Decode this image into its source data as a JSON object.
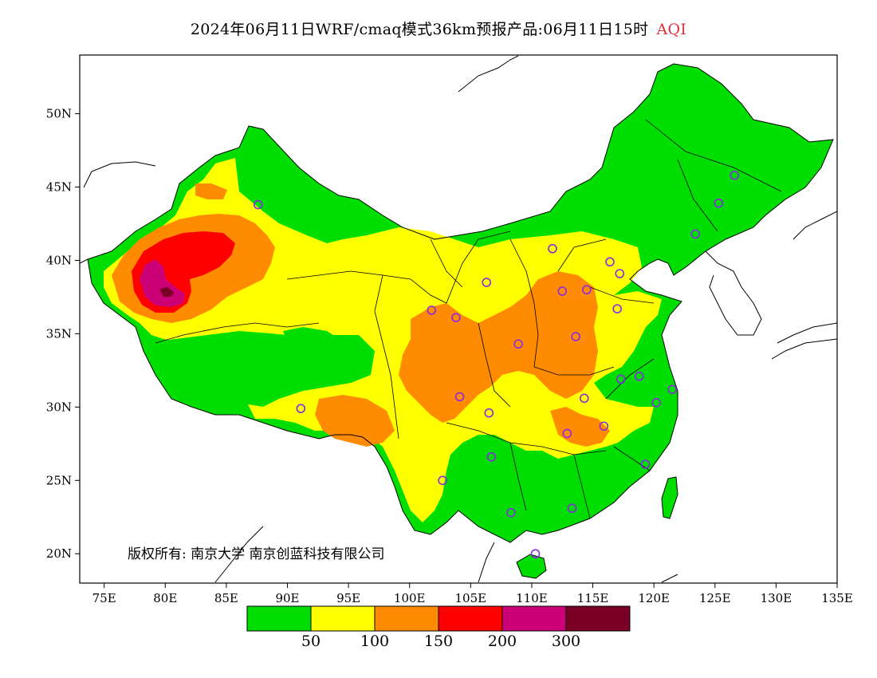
{
  "title": {
    "text": "2024年06月11日WRF/cmaq模式36km预报产品:06月11日15时",
    "variable": "AQI"
  },
  "axes": {
    "lat_ticks": [
      "50N",
      "45N",
      "40N",
      "35N",
      "30N",
      "25N",
      "20N"
    ],
    "lon_ticks": [
      "75E",
      "80E",
      "85E",
      "90E",
      "95E",
      "100E",
      "105E",
      "110E",
      "115E",
      "120E",
      "125E",
      "130E",
      "135E"
    ]
  },
  "copyright": "版权所有: 南京大学  南京创蓝科技有限公司",
  "legend": {
    "colors": [
      "#00dd00",
      "#ffff00",
      "#ff8c00",
      "#ff0000",
      "#cc0077",
      "#7a0025"
    ],
    "labels": [
      "50",
      "100",
      "150",
      "200",
      "300"
    ]
  },
  "colors": {
    "good": "#00dd00",
    "moderate": "#ffff00",
    "usg": "#ff8c00",
    "unhealthy": "#ff0000",
    "very_unhealthy": "#cc0077",
    "hazardous": "#7a0025",
    "station_marker": "#8a2be2"
  },
  "chart_data": {
    "type": "heatmap",
    "title": "2024年06月11日WRF/cmaq模式36km预报产品:06月11日15时 AQI",
    "xlabel": "",
    "ylabel": "",
    "xlim": [
      73,
      135
    ],
    "ylim": [
      18,
      54
    ],
    "x_ticks": [
      75,
      80,
      85,
      90,
      95,
      100,
      105,
      110,
      115,
      120,
      125,
      130,
      135
    ],
    "y_ticks": [
      20,
      25,
      30,
      35,
      40,
      45,
      50
    ],
    "color_scale": {
      "breaks": [
        50,
        100,
        150,
        200,
        300
      ],
      "colors": [
        "#00dd00",
        "#ffff00",
        "#ff8c00",
        "#ff0000",
        "#cc0077",
        "#7a0025"
      ]
    },
    "stations": [
      {
        "lon": 87.6,
        "lat": 43.8
      },
      {
        "lon": 91.1,
        "lat": 29.9
      },
      {
        "lon": 101.8,
        "lat": 36.6
      },
      {
        "lon": 103.8,
        "lat": 36.1
      },
      {
        "lon": 106.3,
        "lat": 38.5
      },
      {
        "lon": 111.7,
        "lat": 40.8
      },
      {
        "lon": 112.5,
        "lat": 37.9
      },
      {
        "lon": 114.5,
        "lat": 38.0
      },
      {
        "lon": 116.4,
        "lat": 39.9
      },
      {
        "lon": 117.2,
        "lat": 39.1
      },
      {
        "lon": 117.0,
        "lat": 36.7
      },
      {
        "lon": 113.6,
        "lat": 34.8
      },
      {
        "lon": 108.9,
        "lat": 34.3
      },
      {
        "lon": 104.1,
        "lat": 30.7
      },
      {
        "lon": 106.5,
        "lat": 29.6
      },
      {
        "lon": 114.3,
        "lat": 30.6
      },
      {
        "lon": 112.9,
        "lat": 28.2
      },
      {
        "lon": 115.9,
        "lat": 28.7
      },
      {
        "lon": 117.3,
        "lat": 31.9
      },
      {
        "lon": 118.8,
        "lat": 32.1
      },
      {
        "lon": 120.2,
        "lat": 30.3
      },
      {
        "lon": 121.5,
        "lat": 31.2
      },
      {
        "lon": 119.3,
        "lat": 26.1
      },
      {
        "lon": 106.7,
        "lat": 26.6
      },
      {
        "lon": 102.7,
        "lat": 25.0
      },
      {
        "lon": 108.3,
        "lat": 22.8
      },
      {
        "lon": 113.3,
        "lat": 23.1
      },
      {
        "lon": 110.3,
        "lat": 20.0
      },
      {
        "lon": 123.4,
        "lat": 41.8
      },
      {
        "lon": 125.3,
        "lat": 43.9
      },
      {
        "lon": 126.6,
        "lat": 45.8
      }
    ]
  }
}
